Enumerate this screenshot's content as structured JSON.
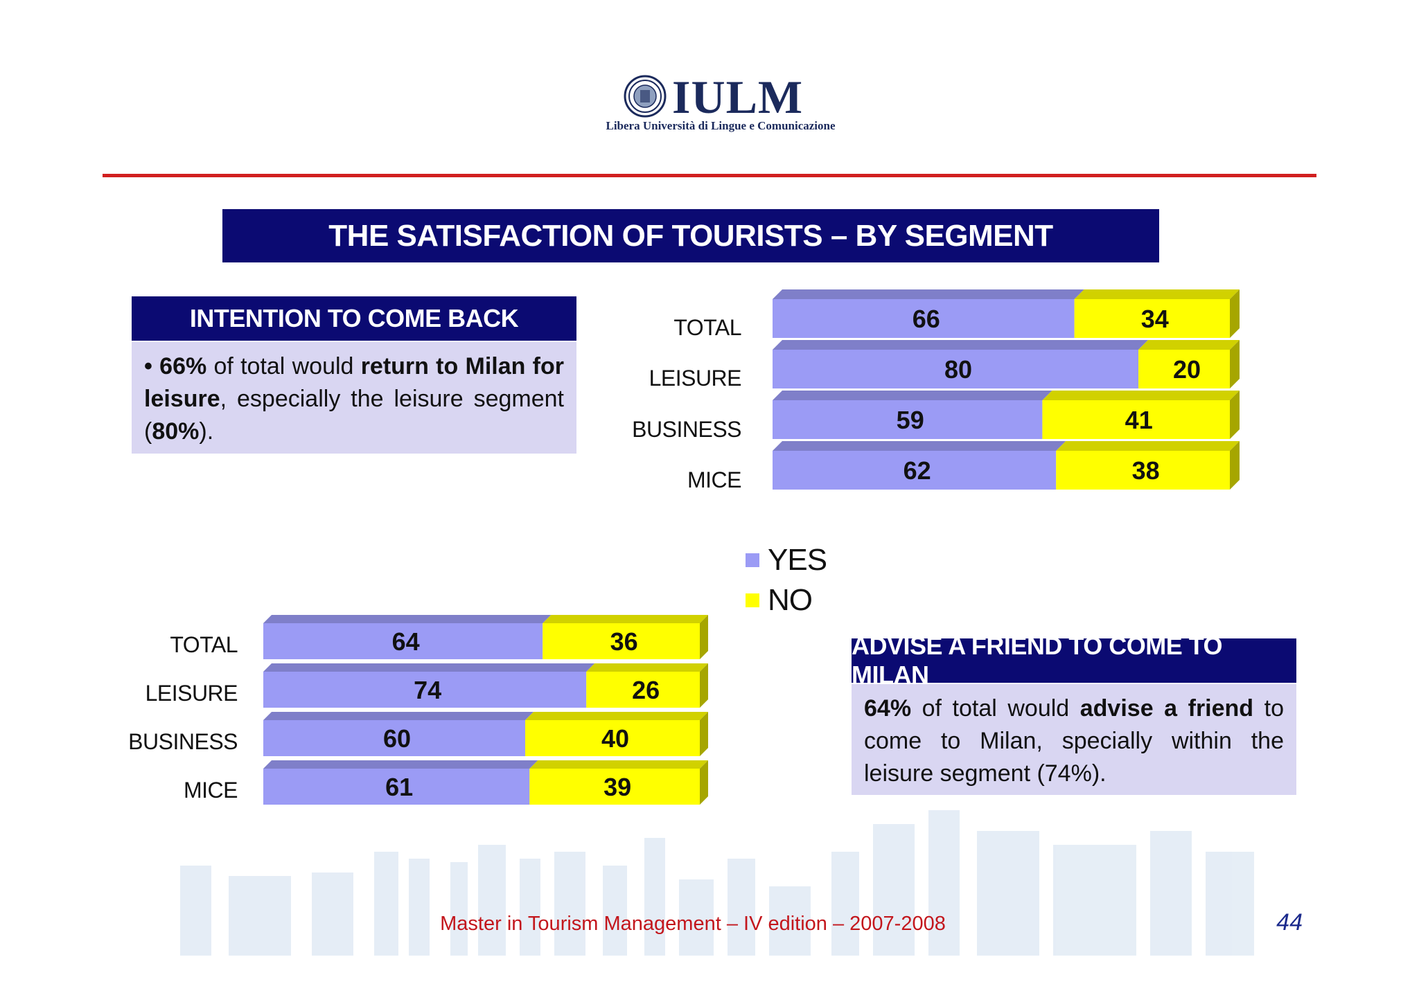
{
  "header": {
    "logo_word": "IULM",
    "logo_subtitle": "Libera Università di Lingue e Comunicazione"
  },
  "title": "THE SATISFACTION OF TOURISTS – BY SEGMENT",
  "intention_box": {
    "heading": "INTENTION TO COME BACK",
    "bullet": "•",
    "t1": "66%",
    "t2": " of total would ",
    "t3": "return to Milan for leisure",
    "t4": ", especially the leisure segment (",
    "t5": "80%",
    "t6": ")."
  },
  "advise_box": {
    "heading": "ADVISE A FRIEND TO COME TO MILAN",
    "t1": "64%",
    "t2": " of total would ",
    "t3": "advise a friend",
    "t4": " to come to Milan, specially within the leisure segment (74%)."
  },
  "legend": {
    "yes": "YES",
    "no": "NO"
  },
  "colors": {
    "yes": "#9b9bf5",
    "no": "#ffff00",
    "header_bg": "#0b0a72",
    "box_bg": "#d9d6f2",
    "accent_red": "#d11f1f"
  },
  "chart_data": [
    {
      "type": "bar",
      "orientation": "horizontal",
      "stacked": true,
      "categories": [
        "TOTAL",
        "LEISURE",
        "BUSINESS",
        "MICE"
      ],
      "series": [
        {
          "name": "YES",
          "values": [
            66,
            80,
            59,
            62
          ]
        },
        {
          "name": "NO",
          "values": [
            34,
            20,
            41,
            38
          ]
        }
      ],
      "xlim": [
        0,
        100
      ]
    },
    {
      "type": "bar",
      "orientation": "horizontal",
      "stacked": true,
      "categories": [
        "TOTAL",
        "LEISURE",
        "BUSINESS",
        "MICE"
      ],
      "series": [
        {
          "name": "YES",
          "values": [
            64,
            74,
            60,
            61
          ]
        },
        {
          "name": "NO",
          "values": [
            36,
            26,
            40,
            39
          ]
        }
      ],
      "xlim": [
        0,
        100
      ]
    }
  ],
  "footer": {
    "text": "Master in Tourism Management – IV edition – 2007-2008",
    "page": "44"
  }
}
